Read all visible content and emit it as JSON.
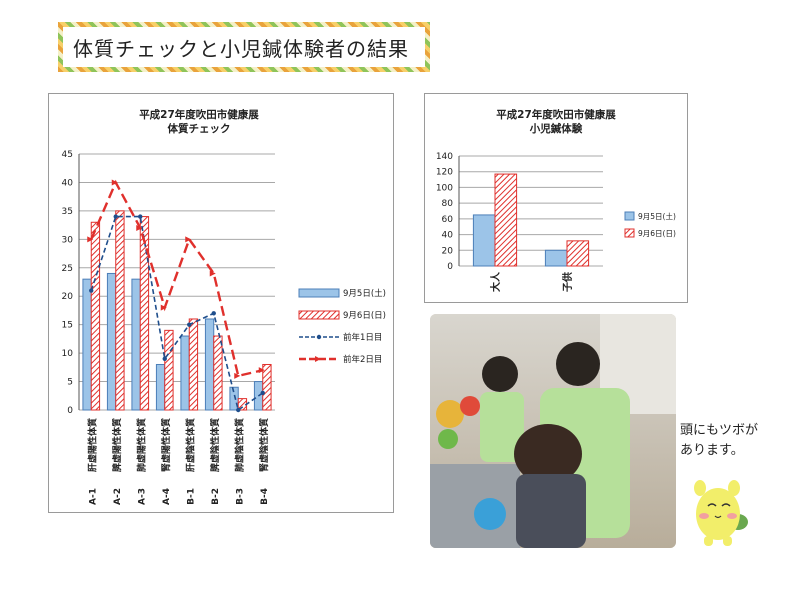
{
  "page_title": "体質チェックと小児鍼体験者の結果",
  "caption_lines": [
    "頭にもツボが",
    "あります。"
  ],
  "colors": {
    "blue_fill": "#9cc4e8",
    "blue_stroke": "#4d7fb8",
    "red": "#e0302c",
    "grid": "#a8a8a8",
    "navy": "#1f4e8c"
  },
  "chart_data": [
    {
      "type": "bar",
      "title_lines": [
        "平成27年度吹田市健康展",
        "体質チェック"
      ],
      "categories": [
        "A-1",
        "A-2",
        "A-3",
        "A-4",
        "B-1",
        "B-2",
        "B-3",
        "B-4"
      ],
      "category_labels": [
        "肝虚陽性体質",
        "脾虚陽性体質",
        "肺虚陽性体質",
        "腎虚陽性体質",
        "肝虚陰性体質",
        "脾虚陰性体質",
        "肺虚陰性体質",
        "腎虚陰性体質"
      ],
      "ylim": [
        0,
        45
      ],
      "yticks": [
        0,
        5,
        10,
        15,
        20,
        25,
        30,
        35,
        40,
        45
      ],
      "grid": true,
      "legend_position": "right",
      "series": [
        {
          "name": "9月5日(土)",
          "kind": "bar",
          "style": "blue",
          "values": [
            23,
            24,
            23,
            8,
            13,
            16,
            4,
            5
          ]
        },
        {
          "name": "9月6日(日)",
          "kind": "bar",
          "style": "red-hatch",
          "values": [
            33,
            35,
            34,
            14,
            16,
            13,
            2,
            8
          ]
        },
        {
          "name": "前年1日目",
          "kind": "line",
          "style": "navy-dash",
          "values": [
            21,
            34,
            34,
            9,
            15,
            17,
            0,
            3
          ]
        },
        {
          "name": "前年2日目",
          "kind": "line",
          "style": "red-dash",
          "values": [
            30,
            40,
            32,
            18,
            30,
            24,
            6,
            7
          ]
        }
      ]
    },
    {
      "type": "bar",
      "title_lines": [
        "平成27年度吹田市健康展",
        "小児鍼体験"
      ],
      "categories": [
        "大人",
        "子供"
      ],
      "ylim": [
        0,
        140
      ],
      "yticks": [
        0,
        20,
        40,
        60,
        80,
        100,
        120,
        140
      ],
      "grid": true,
      "legend_position": "right",
      "series": [
        {
          "name": "9月5日(土)",
          "kind": "bar",
          "style": "blue",
          "values": [
            65,
            20
          ]
        },
        {
          "name": "9月6日(日)",
          "kind": "bar",
          "style": "red-hatch",
          "values": [
            117,
            32
          ]
        }
      ]
    }
  ]
}
